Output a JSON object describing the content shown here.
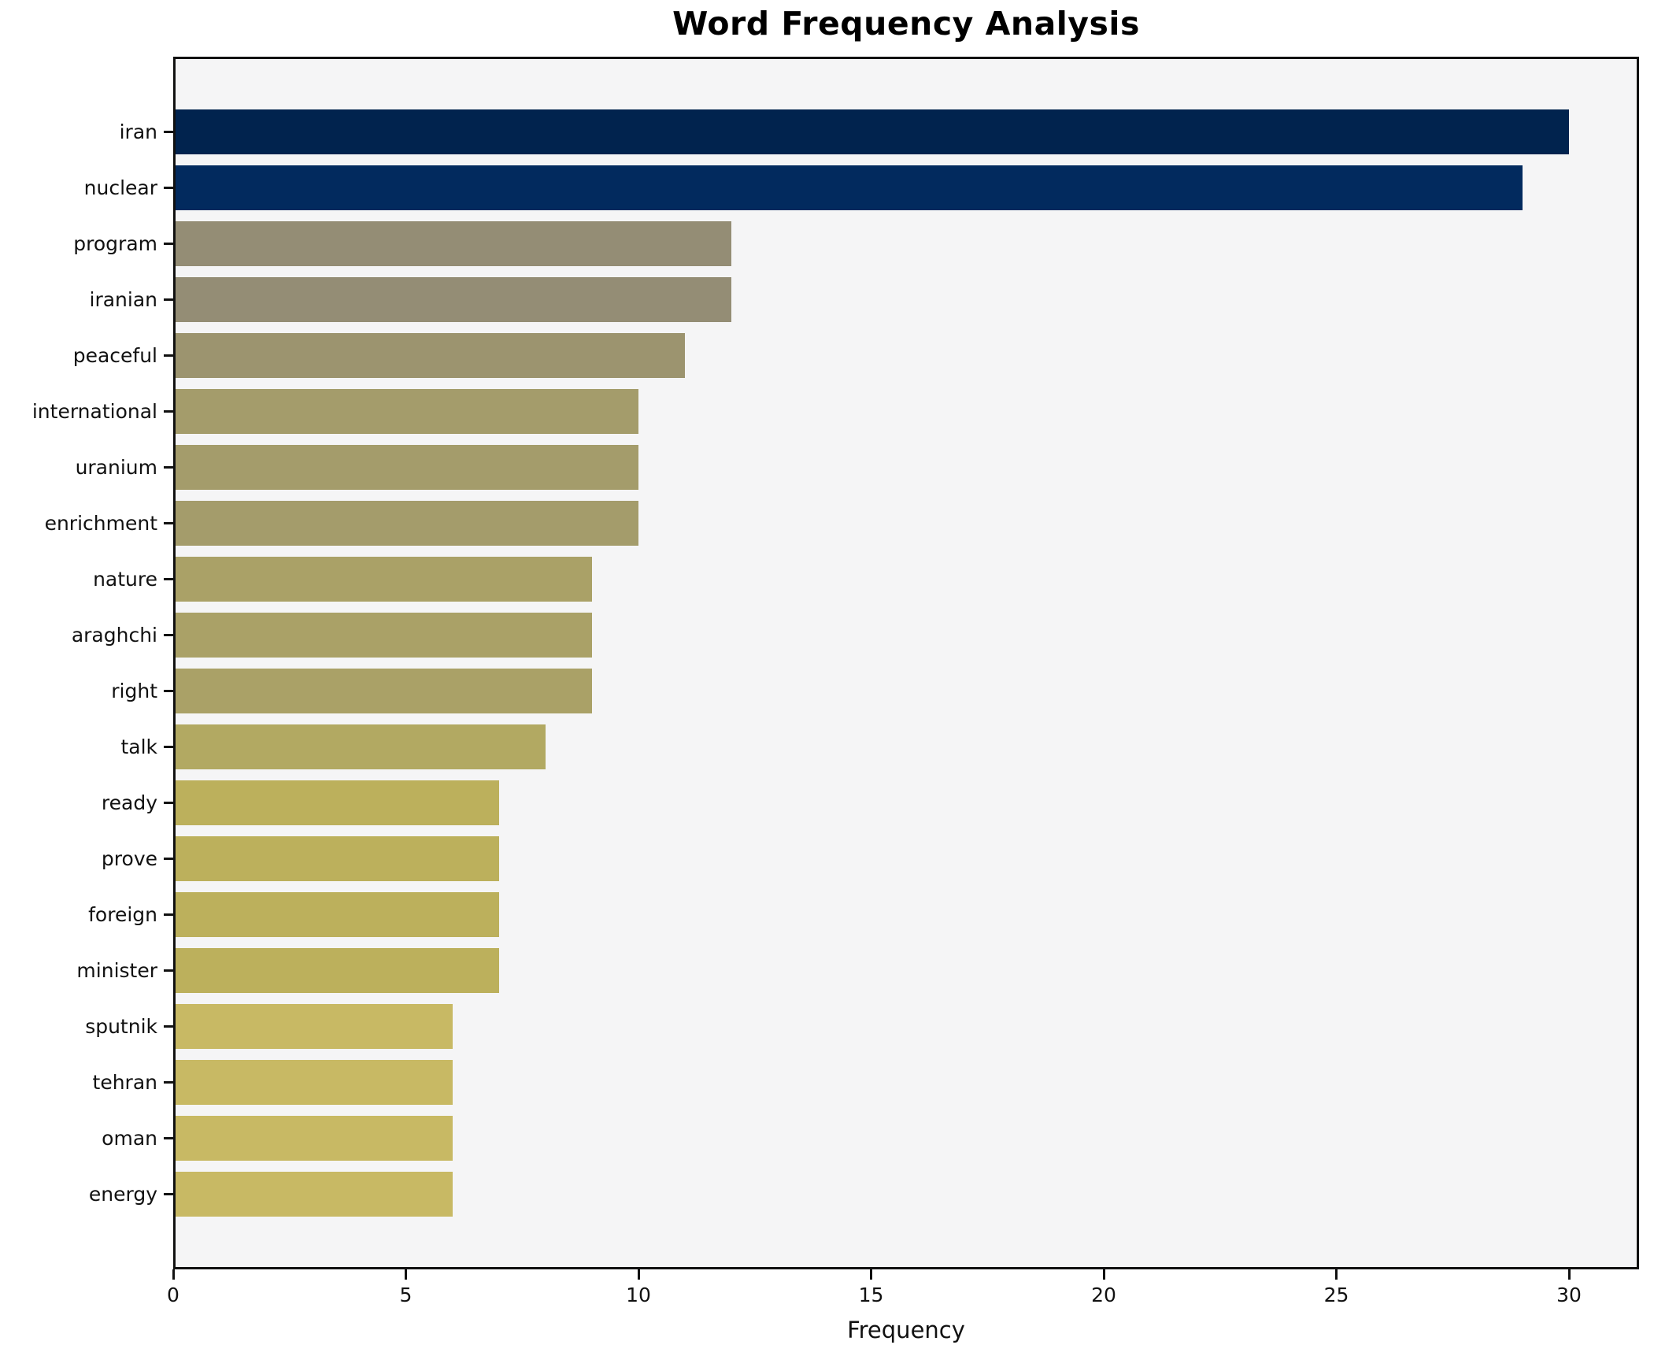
{
  "title": "Word Frequency Analysis",
  "chart_data": {
    "type": "bar",
    "orientation": "horizontal",
    "title": "Word Frequency Analysis",
    "xlabel": "Frequency",
    "ylabel": "",
    "categories": [
      "iran",
      "nuclear",
      "program",
      "iranian",
      "peaceful",
      "international",
      "uranium",
      "enrichment",
      "nature",
      "araghchi",
      "right",
      "talk",
      "ready",
      "prove",
      "foreign",
      "minister",
      "sputnik",
      "tehran",
      "oman",
      "energy"
    ],
    "values": [
      30,
      29,
      12,
      12,
      11,
      10,
      10,
      10,
      9,
      9,
      9,
      8,
      7,
      7,
      7,
      7,
      6,
      6,
      6,
      6
    ],
    "bar_colors": [
      "#01234e",
      "#022a5e",
      "#948d75",
      "#948d75",
      "#9c946f",
      "#a49c6b",
      "#a49c6b",
      "#a49c6b",
      "#aaa167",
      "#aaa167",
      "#aaa167",
      "#b2a962",
      "#bcb05c",
      "#bcb05c",
      "#bcb05c",
      "#bcb05c",
      "#c8b964",
      "#c8b964",
      "#c8b964",
      "#c8b964"
    ],
    "xticks": [
      0,
      5,
      10,
      15,
      20,
      25,
      30
    ],
    "xlim": [
      0,
      31.5
    ],
    "grid": false,
    "legend": "none",
    "plot_background": "#f5f5f6",
    "figure_background": "#ffffff",
    "spine_color": "#111111",
    "text_color": "#111111"
  }
}
